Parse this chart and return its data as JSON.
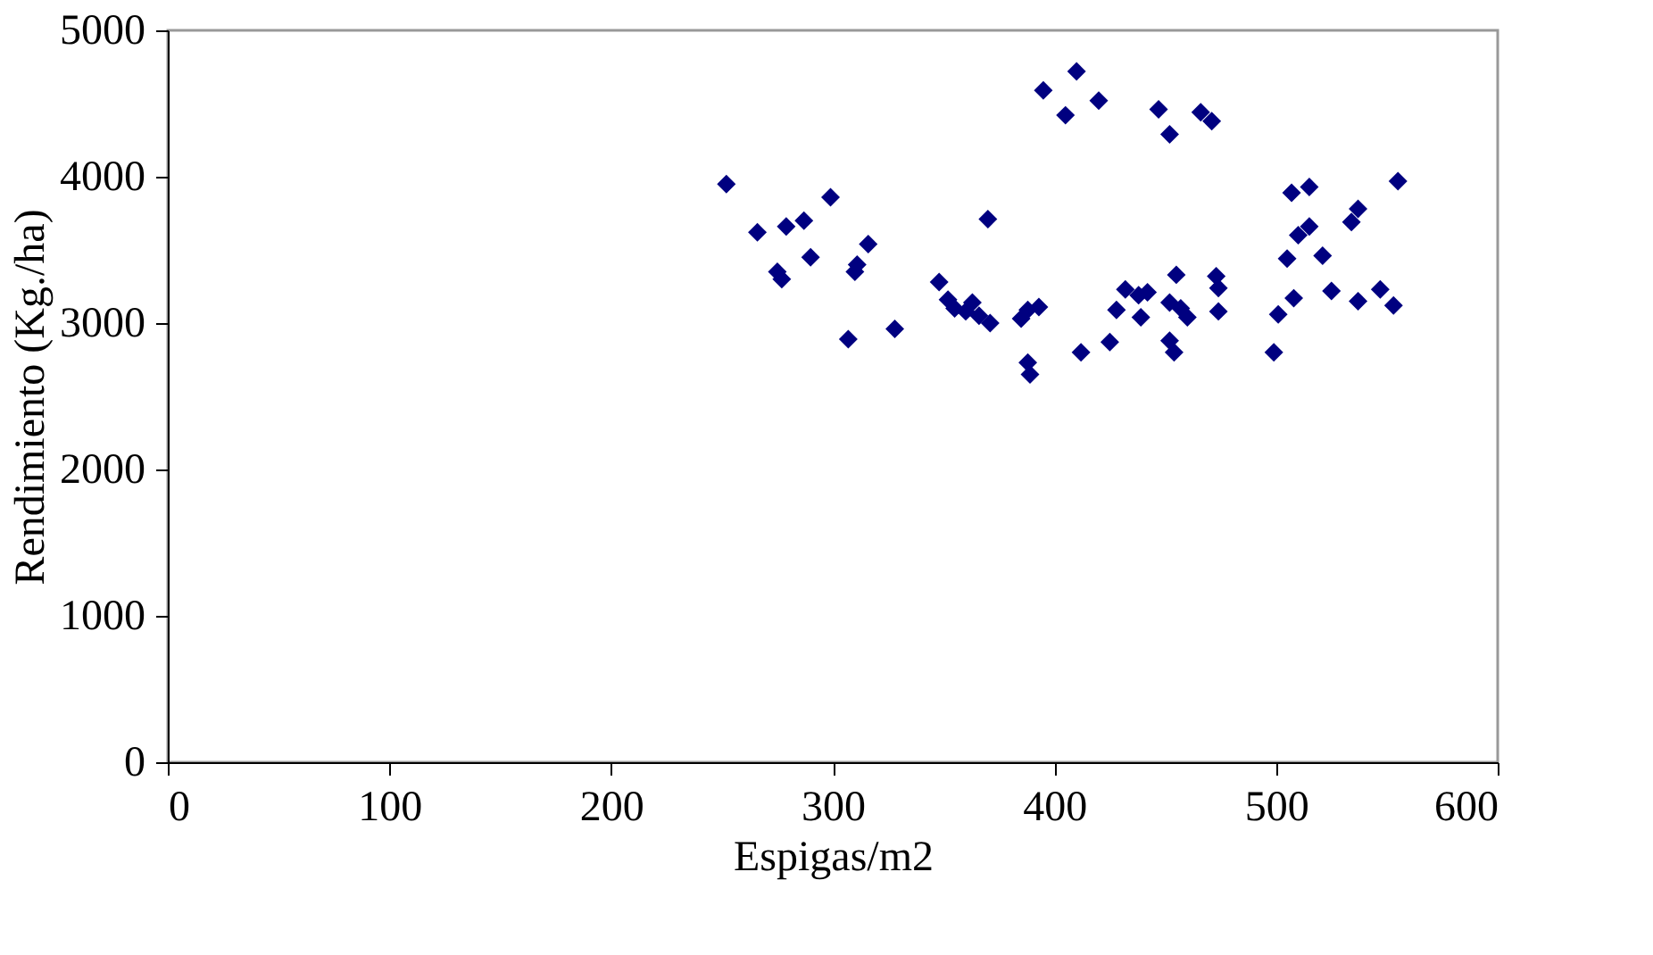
{
  "chart_data": {
    "type": "scatter",
    "xlabel": "Espigas/m2",
    "ylabel": "Rendimiento (Kg./ha)",
    "x": [
      252,
      266,
      275,
      277,
      279,
      287,
      290,
      299,
      307,
      310,
      311,
      316,
      328,
      348,
      352,
      355,
      360,
      363,
      366,
      371,
      370,
      385,
      388,
      389,
      388,
      393,
      395,
      405,
      410,
      420,
      412,
      425,
      428,
      432,
      438,
      439,
      442,
      447,
      452,
      452,
      454,
      455,
      457,
      460,
      466,
      471,
      473,
      474,
      474,
      499,
      501,
      505,
      507,
      508,
      510,
      515,
      515,
      521,
      525,
      534,
      537,
      537,
      547,
      553,
      555,
      452
    ],
    "series": [
      {
        "color": "#000080",
        "values": [
          3950,
          3620,
          3350,
          3300,
          3660,
          3700,
          3450,
          3860,
          2890,
          3350,
          3400,
          3540,
          2960,
          3280,
          3160,
          3100,
          3080,
          3140,
          3050,
          3000,
          3710,
          3030,
          2730,
          2650,
          3090,
          3110,
          4590,
          4420,
          4720,
          4520,
          2800,
          2870,
          3090,
          3230,
          3190,
          3040,
          3210,
          4460,
          4290,
          2880,
          2800,
          3330,
          3100,
          3040,
          4440,
          4380,
          3320,
          3240,
          3080,
          2800,
          3060,
          3440,
          3890,
          3170,
          3600,
          3930,
          3660,
          3460,
          3220,
          3690,
          3780,
          3150,
          3230,
          3120,
          3970,
          3140
        ]
      }
    ],
    "xlim": [
      0,
      600
    ],
    "xticks": [
      0,
      100,
      200,
      300,
      400,
      500,
      600
    ],
    "ylim": [
      0,
      5000
    ],
    "yticks": [
      0,
      1000,
      2000,
      3000,
      4000,
      5000
    ],
    "marker": "diamond",
    "grid": false
  }
}
